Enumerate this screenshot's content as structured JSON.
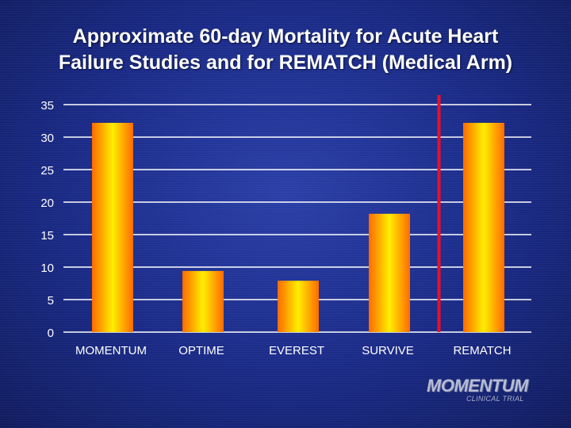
{
  "title_line1": "Approximate 60-day Mortality for Acute Heart",
  "title_line2": "Failure Studies and for REMATCH (Medical Arm)",
  "chart_data": {
    "type": "bar",
    "categories": [
      "MOMENTUM",
      "OPTIME",
      "EVEREST",
      "SURVIVE",
      "REMATCH"
    ],
    "values": [
      32.2,
      9.4,
      7.9,
      18.2,
      32.2
    ],
    "ylim": [
      0,
      35
    ],
    "yticks": [
      0,
      5,
      10,
      15,
      20,
      25,
      30,
      35
    ],
    "grid": true,
    "divider_before_category": "REMATCH",
    "colors": {
      "bar_edge": "#ff6a00",
      "bar_center": "#ffee00",
      "gridline": "#ffffff",
      "divider": "#e8102a",
      "text": "#ffffff"
    }
  },
  "logo": {
    "name": "MOMENTUM",
    "subtitle": "CLINICAL TRIAL"
  }
}
